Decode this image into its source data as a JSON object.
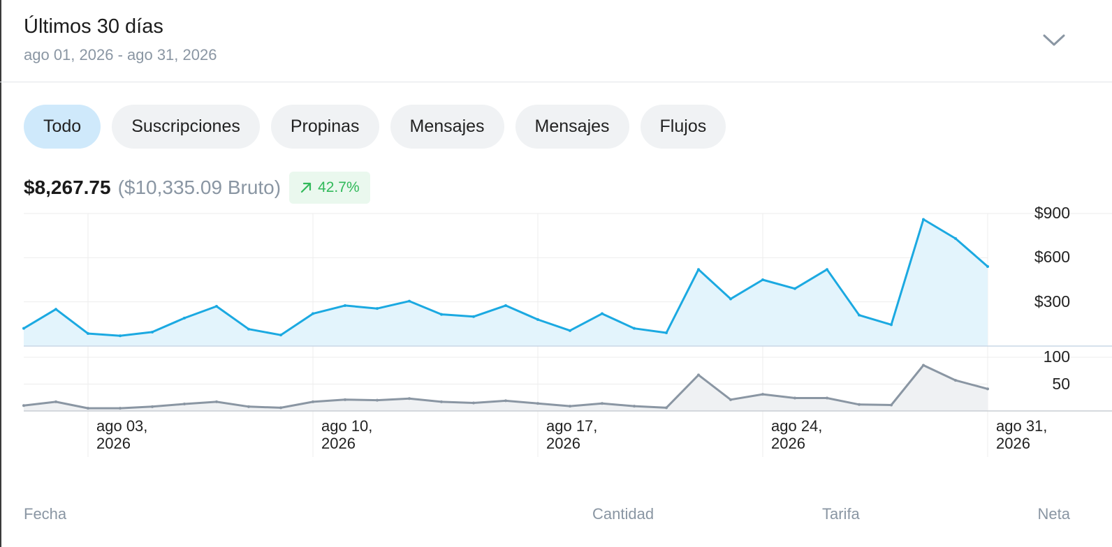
{
  "header": {
    "title": "Últimos 30 días",
    "date_range": "ago 01, 2026 - ago 31, 2026",
    "expand_icon": "chevron-down-icon"
  },
  "filters": [
    {
      "label": "Todo",
      "active": true
    },
    {
      "label": "Suscripciones",
      "active": false
    },
    {
      "label": "Propinas",
      "active": false
    },
    {
      "label": "Mensajes",
      "active": false
    },
    {
      "label": "Mensajes",
      "active": false
    },
    {
      "label": "Flujos",
      "active": false
    }
  ],
  "summary": {
    "net": "$8,267.75",
    "gross": "($10,335.09 Bruto)",
    "change": "42.7%",
    "change_icon": "arrow-up-right-icon",
    "change_color": "#31b95a"
  },
  "chart_data": [
    {
      "type": "area",
      "x": [
        "ago 01",
        "ago 02",
        "ago 03",
        "ago 04",
        "ago 05",
        "ago 06",
        "ago 07",
        "ago 08",
        "ago 09",
        "ago 10",
        "ago 11",
        "ago 12",
        "ago 13",
        "ago 14",
        "ago 15",
        "ago 16",
        "ago 17",
        "ago 18",
        "ago 19",
        "ago 20",
        "ago 21",
        "ago 22",
        "ago 23",
        "ago 24",
        "ago 25",
        "ago 26",
        "ago 27",
        "ago 28",
        "ago 29",
        "ago 30",
        "ago 31"
      ],
      "series": [
        {
          "values": [
            120,
            250,
            85,
            70,
            95,
            190,
            270,
            115,
            75,
            220,
            275,
            255,
            305,
            215,
            200,
            275,
            180,
            105,
            220,
            120,
            90,
            520,
            320,
            450,
            390,
            520,
            210,
            145,
            860,
            730,
            540
          ],
          "color": "#1ba9e1"
        }
      ],
      "y_ticks": [
        "$300",
        "$600",
        "$900"
      ],
      "ylim": [
        0,
        900
      ],
      "grid": true
    },
    {
      "type": "area",
      "x": [
        "ago 01",
        "ago 02",
        "ago 03",
        "ago 04",
        "ago 05",
        "ago 06",
        "ago 07",
        "ago 08",
        "ago 09",
        "ago 10",
        "ago 11",
        "ago 12",
        "ago 13",
        "ago 14",
        "ago 15",
        "ago 16",
        "ago 17",
        "ago 18",
        "ago 19",
        "ago 20",
        "ago 21",
        "ago 22",
        "ago 23",
        "ago 24",
        "ago 25",
        "ago 26",
        "ago 27",
        "ago 28",
        "ago 29",
        "ago 30",
        "ago 31"
      ],
      "series": [
        {
          "values": [
            10,
            17,
            5,
            5,
            8,
            13,
            17,
            8,
            6,
            17,
            21,
            20,
            23,
            17,
            15,
            19,
            14,
            9,
            14,
            9,
            6,
            67,
            21,
            31,
            24,
            24,
            12,
            11,
            85,
            57,
            41
          ],
          "color": "#8a96a3"
        }
      ],
      "y_ticks": [
        "50",
        "100"
      ],
      "ylim": [
        0,
        100
      ],
      "grid": true
    }
  ],
  "x_axis_ticks": [
    {
      "line1": "ago 03,",
      "line2": "2026"
    },
    {
      "line1": "ago 10,",
      "line2": "2026"
    },
    {
      "line1": "ago 17,",
      "line2": "2026"
    },
    {
      "line1": "ago 24,",
      "line2": "2026"
    },
    {
      "line1": "ago 31,",
      "line2": "2026"
    }
  ],
  "table": {
    "columns": [
      "Fecha",
      "Cantidad",
      "Tarifa",
      "Neta"
    ]
  }
}
